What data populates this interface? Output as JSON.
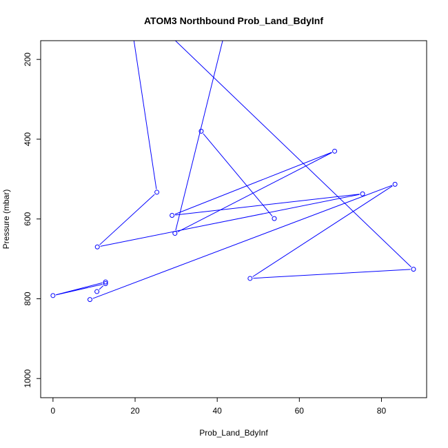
{
  "chart_data": {
    "type": "line",
    "title": "ATOM3 Northbound Prob_Land_BdyInf",
    "xlabel": "Prob_Land_BdyInf",
    "ylabel": "Pressure (mbar)",
    "xlim": [
      -3,
      91
    ],
    "ylim": [
      1048,
      153
    ],
    "y_reversed": true,
    "grid": false,
    "x_ticks": [
      0,
      20,
      40,
      60,
      80
    ],
    "y_ticks": [
      200,
      400,
      600,
      800,
      1000
    ],
    "series": [
      {
        "color": "#0000ff",
        "marker": "open-circle",
        "points": [
          {
            "x": 16,
            "y": -100,
            "marker": false
          },
          {
            "x": 25.3,
            "y": 533,
            "marker": true
          },
          {
            "x": 10.8,
            "y": 670,
            "marker": true
          },
          {
            "x": 75.4,
            "y": 537,
            "marker": true
          },
          {
            "x": 29,
            "y": 591,
            "marker": true
          },
          {
            "x": 68.6,
            "y": 430,
            "marker": true
          },
          {
            "x": 29.7,
            "y": 636,
            "marker": true
          },
          {
            "x": 45,
            "y": 0,
            "marker": false
          }
        ]
      },
      {
        "color": "#0000ff",
        "marker": "open-circle",
        "points": [
          {
            "x": 29,
            "y": 145,
            "marker": false
          },
          {
            "x": 87.8,
            "y": 726,
            "marker": true
          },
          {
            "x": 48,
            "y": 749,
            "marker": true
          },
          {
            "x": 83.3,
            "y": 513,
            "marker": true
          },
          {
            "x": 9,
            "y": 802,
            "marker": true
          }
        ]
      },
      {
        "color": "#0000ff",
        "marker": "open-circle",
        "points": [
          {
            "x": 36.1,
            "y": 380,
            "marker": true
          },
          {
            "x": 53.9,
            "y": 599,
            "marker": true
          }
        ]
      },
      {
        "color": "#0000ff",
        "marker": "open-circle",
        "points": [
          {
            "x": 12.8,
            "y": 758,
            "marker": true
          },
          {
            "x": 0,
            "y": 792,
            "marker": true
          },
          {
            "x": 12.8,
            "y": 762,
            "marker": true
          },
          {
            "x": 10.7,
            "y": 782,
            "marker": true
          }
        ]
      }
    ]
  }
}
